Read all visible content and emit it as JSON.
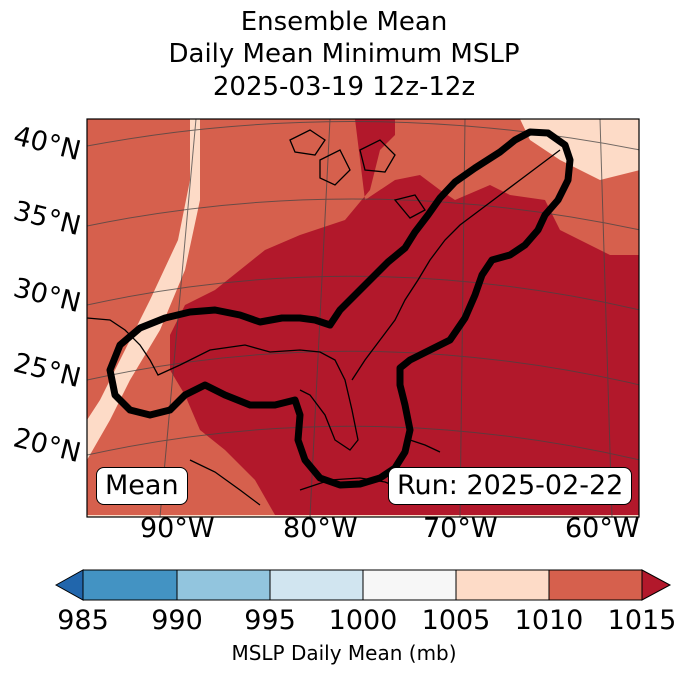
{
  "title": {
    "line1": "Ensemble Mean",
    "line2": "Daily Mean Minimum MSLP",
    "line3": "2025-03-19 12z-12z"
  },
  "latitude_labels": [
    "40°N",
    "35°N",
    "30°N",
    "25°N",
    "20°N"
  ],
  "longitude_labels": [
    "90°W",
    "80°W",
    "70°W",
    "60°W"
  ],
  "badges": {
    "left": "Mean",
    "right": "Run: 2025-02-22"
  },
  "colorbar": {
    "label": "MSLP Daily Mean (mb)",
    "ticks": [
      "985",
      "990",
      "995",
      "1000",
      "1005",
      "1010",
      "1015"
    ],
    "colors": [
      "#2166ac",
      "#4393c3",
      "#92c5de",
      "#d1e5f0",
      "#f7f7f7",
      "#fddbc7",
      "#d6604d",
      "#b2182b"
    ]
  },
  "map": {
    "contour_color": "#000000",
    "fill_high": "#b2182b",
    "fill_mid": "#d6604d",
    "fill_low": "#fddbc7"
  }
}
